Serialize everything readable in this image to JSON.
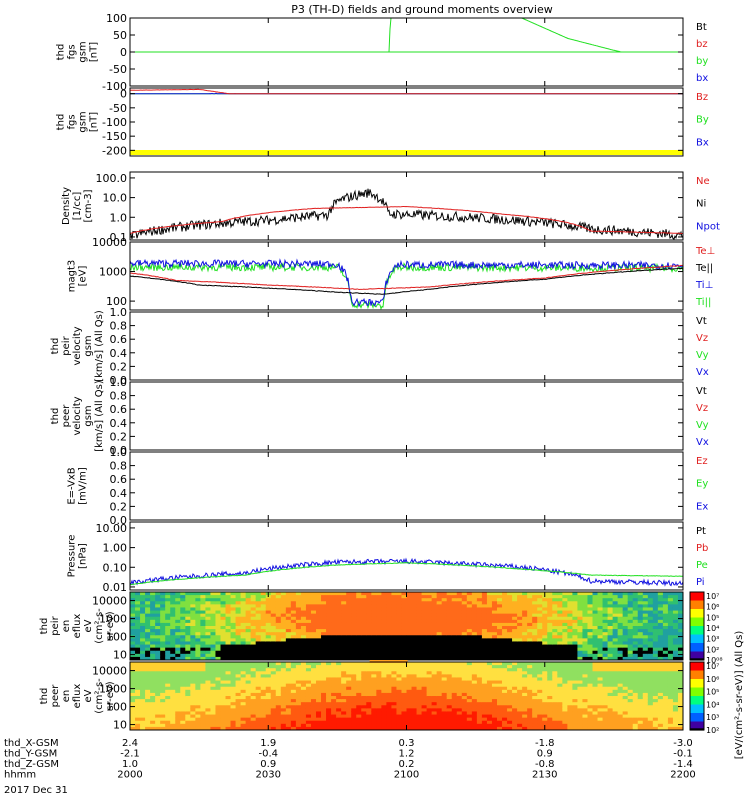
{
  "title": "P3 (TH-D) fields and ground moments overview",
  "date_label": "2017 Dec 31",
  "colors": {
    "black": "#000000",
    "red": "#e02020",
    "green": "#20e020",
    "blue": "#1010e0",
    "yellow": "#ffff00"
  },
  "panels": [
    {
      "id": "fgs",
      "ylabel": [
        "thd",
        "fgs",
        "gsm",
        "[nT]"
      ],
      "ylim": [
        -100,
        100
      ],
      "log": false,
      "ticks": [
        "100",
        "50",
        "0",
        "-50",
        "-100"
      ],
      "tickvals": [
        100,
        50,
        0,
        -50,
        -100
      ],
      "legend": [
        {
          "text": "Bt",
          "color": "black"
        },
        {
          "text": "bz",
          "color": "red"
        },
        {
          "text": "by",
          "color": "green"
        },
        {
          "text": "bx",
          "color": "blue"
        }
      ]
    },
    {
      "id": "fgl",
      "ylabel": [
        "thd",
        "fgs",
        "gsm",
        "[nT]"
      ],
      "ylim": [
        -220,
        20
      ],
      "log": false,
      "ticks": [
        "0",
        "-50",
        "-100",
        "-150",
        "-200"
      ],
      "tickvals": [
        0,
        -50,
        -100,
        -150,
        -200
      ],
      "legend": [
        {
          "text": "Bz",
          "color": "red"
        },
        {
          "text": "By",
          "color": "green"
        },
        {
          "text": "Bx",
          "color": "blue"
        }
      ]
    },
    {
      "id": "density",
      "ylabel": [
        "Density",
        "[1/cc]",
        "[cm-3]"
      ],
      "ylim": [
        0.07,
        200
      ],
      "log": true,
      "ticks": [
        "100.0",
        "10.0",
        "1.0",
        "0.1"
      ],
      "tickvals": [
        100,
        10,
        1,
        0.1
      ],
      "legend": [
        {
          "text": "Ne",
          "color": "red"
        },
        {
          "text": "Ni",
          "color": "black"
        },
        {
          "text": "Npot",
          "color": "blue"
        }
      ]
    },
    {
      "id": "temp",
      "ylabel": [
        "magt3",
        "[eV]"
      ],
      "ylim": [
        50,
        10000
      ],
      "log": true,
      "ticks": [
        "10000",
        "1000",
        "100"
      ],
      "tickvals": [
        10000,
        1000,
        100
      ],
      "legend": [
        {
          "text": "Te⊥",
          "color": "red"
        },
        {
          "text": "Te||",
          "color": "black"
        },
        {
          "text": "Ti⊥",
          "color": "blue"
        },
        {
          "text": "Ti||",
          "color": "green"
        }
      ]
    },
    {
      "id": "peirv",
      "ylabel": [
        "thd",
        "peir",
        "velocity",
        "gsm",
        "[km/s] (All Qs)"
      ],
      "ylim": [
        0,
        1
      ],
      "log": false,
      "ticks": [
        "1.0",
        "0.8",
        "0.6",
        "0.4",
        "0.2",
        "0.0"
      ],
      "tickvals": [
        1,
        0.8,
        0.6,
        0.4,
        0.2,
        0
      ],
      "legend": [
        {
          "text": "Vt",
          "color": "black"
        },
        {
          "text": "Vz",
          "color": "red"
        },
        {
          "text": "Vy",
          "color": "green"
        },
        {
          "text": "Vx",
          "color": "blue"
        }
      ]
    },
    {
      "id": "peerv",
      "ylabel": [
        "thd",
        "peer",
        "velocity",
        "gsm",
        "[km/s] (All Qs)"
      ],
      "ylim": [
        0,
        1
      ],
      "log": false,
      "ticks": [
        "1.0",
        "0.8",
        "0.6",
        "0.4",
        "0.2",
        "0.0"
      ],
      "tickvals": [
        1,
        0.8,
        0.6,
        0.4,
        0.2,
        0
      ],
      "legend": [
        {
          "text": "Vt",
          "color": "black"
        },
        {
          "text": "Vz",
          "color": "red"
        },
        {
          "text": "Vy",
          "color": "green"
        },
        {
          "text": "Vx",
          "color": "blue"
        }
      ]
    },
    {
      "id": "efield",
      "ylabel": [
        "E=-VxB",
        "[mV/m]"
      ],
      "ylim": [
        0,
        1
      ],
      "log": false,
      "ticks": [
        "1.0",
        "0.8",
        "0.6",
        "0.4",
        "0.2",
        "0.0"
      ],
      "tickvals": [
        1,
        0.8,
        0.6,
        0.4,
        0.2,
        0
      ],
      "legend": [
        {
          "text": "Ez",
          "color": "red"
        },
        {
          "text": "Ey",
          "color": "green"
        },
        {
          "text": "Ex",
          "color": "blue"
        }
      ]
    },
    {
      "id": "pressure",
      "ylabel": [
        "Pressure",
        "[nPa]"
      ],
      "ylim": [
        0.007,
        20
      ],
      "log": true,
      "ticks": [
        "10.00",
        "1.00",
        "0.10",
        "0.01"
      ],
      "tickvals": [
        10,
        1,
        0.1,
        0.01
      ],
      "legend": [
        {
          "text": "Pt",
          "color": "black"
        },
        {
          "text": "Pb",
          "color": "red"
        },
        {
          "text": "Pe",
          "color": "green"
        },
        {
          "text": "Pi",
          "color": "blue"
        }
      ]
    },
    {
      "id": "peirspec",
      "ylabel": [
        "thd",
        "peir",
        "en",
        "eflux",
        "eV",
        "(cm²-s-",
        "sr-eV)"
      ],
      "ylim": [
        5,
        30000
      ],
      "log": true,
      "ticks": [
        "10000",
        "1000",
        "100",
        "10"
      ],
      "tickvals": [
        10000,
        1000,
        100,
        10
      ],
      "legend": []
    },
    {
      "id": "peerspec",
      "ylabel": [
        "thd",
        "peer",
        "en",
        "eflux",
        "eV",
        "(cm²-s-",
        "sr-eV)"
      ],
      "ylim": [
        5,
        30000
      ],
      "log": true,
      "ticks": [
        "10000",
        "1000",
        "100",
        "10"
      ],
      "tickvals": [
        10000,
        1000,
        100,
        10
      ],
      "legend": []
    }
  ],
  "colorbar": {
    "ticks": [
      "10⁷",
      "10⁶",
      "10⁵",
      "10⁴",
      "10³",
      "10²",
      "10⁰⁸"
    ],
    "ticks2": [
      "10⁷",
      "10⁶",
      "10⁵",
      "10⁴",
      "10³",
      "10²"
    ],
    "label": "[eV/(cm²-s-sr-eV)] (All Qs)"
  },
  "xaxis": {
    "rows": [
      {
        "label": "thd_X-GSM",
        "values": [
          "2.4",
          "1.9",
          "0.3",
          "-1.8",
          "-3.0"
        ]
      },
      {
        "label": "thd_Y-GSM",
        "values": [
          "-2.1",
          "-0.4",
          "1.2",
          "0.9",
          "-0.1"
        ]
      },
      {
        "label": "thd_Z-GSM",
        "values": [
          "1.0",
          "0.9",
          "0.2",
          "-0.8",
          "-1.4"
        ]
      },
      {
        "label": "hhmm",
        "values": [
          "2000",
          "2030",
          "2100",
          "2130",
          "2200"
        ]
      }
    ],
    "tick_minutes": [
      0,
      30,
      60,
      90,
      120
    ],
    "range_minutes": [
      0,
      120
    ]
  },
  "chart_data": {
    "type": "line",
    "title": "P3 (TH-D) fields and ground moments overview",
    "x_unit": "minutes after 2000 UT",
    "fgs_bz": [
      [
        0,
        -300
      ],
      [
        37,
        -300
      ],
      [
        38,
        -100
      ]
    ],
    "fgs_bx": [
      [
        56,
        -100
      ],
      [
        56.5,
        100
      ]
    ],
    "fgs_by": [
      [
        85,
        100
      ],
      [
        95,
        40
      ],
      [
        105,
        5
      ],
      [
        115,
        -25
      ],
      [
        120,
        -35
      ]
    ],
    "fgl_Bz": [
      [
        0,
        12
      ],
      [
        15,
        15
      ],
      [
        30,
        -20
      ],
      [
        40,
        -50
      ],
      [
        45,
        -40
      ],
      [
        60,
        -15
      ],
      [
        90,
        -5
      ],
      [
        120,
        0
      ]
    ],
    "fgl_By": [
      [
        0,
        -15
      ],
      [
        15,
        -30
      ],
      [
        30,
        -90
      ],
      [
        42,
        -150
      ],
      [
        50,
        -110
      ],
      [
        60,
        -115
      ],
      [
        75,
        -95
      ],
      [
        90,
        -50
      ],
      [
        120,
        -10
      ]
    ],
    "fgl_Bx": [
      [
        0,
        -10
      ],
      [
        20,
        -5
      ],
      [
        37,
        -15
      ],
      [
        47,
        -120
      ],
      [
        55,
        -165
      ],
      [
        65,
        -110
      ],
      [
        90,
        -45
      ],
      [
        120,
        -10
      ]
    ],
    "density_Ne": [
      [
        0,
        0.15
      ],
      [
        20,
        0.6
      ],
      [
        40,
        2.8
      ],
      [
        60,
        3.5
      ],
      [
        80,
        1.5
      ],
      [
        100,
        0.2
      ],
      [
        120,
        0.15
      ]
    ],
    "density_Ni": [
      [
        0,
        0.1
      ],
      [
        30,
        0.7
      ],
      [
        43,
        1.3
      ],
      [
        46,
        8
      ],
      [
        52,
        18
      ],
      [
        56,
        1.5
      ],
      [
        80,
        0.8
      ],
      [
        100,
        0.25
      ],
      [
        120,
        0.12
      ]
    ],
    "temp_Te_perp": [
      [
        0,
        900
      ],
      [
        10,
        500
      ],
      [
        30,
        350
      ],
      [
        50,
        250
      ],
      [
        65,
        300
      ],
      [
        90,
        600
      ],
      [
        120,
        1600
      ]
    ],
    "temp_Te_par": [
      [
        0,
        700
      ],
      [
        15,
        350
      ],
      [
        45,
        200
      ],
      [
        55,
        170
      ],
      [
        65,
        250
      ],
      [
        90,
        550
      ],
      [
        120,
        1300
      ]
    ],
    "temp_Ti_perp": [
      [
        0,
        1900
      ],
      [
        45,
        1800
      ],
      [
        48,
        90
      ],
      [
        55,
        90
      ],
      [
        58,
        1700
      ],
      [
        120,
        1600
      ]
    ],
    "temp_Ti_par": [
      [
        0,
        1400
      ],
      [
        45,
        1400
      ],
      [
        48,
        80
      ],
      [
        55,
        70
      ],
      [
        58,
        1400
      ],
      [
        120,
        1300
      ]
    ],
    "pressure_Pi": [
      [
        0,
        0.016
      ],
      [
        25,
        0.05
      ],
      [
        45,
        0.18
      ],
      [
        60,
        0.2
      ],
      [
        85,
        0.1
      ],
      [
        100,
        0.02
      ],
      [
        120,
        0.015
      ]
    ],
    "pressure_Pe": [
      [
        0,
        0.013
      ],
      [
        25,
        0.04
      ],
      [
        45,
        0.13
      ],
      [
        60,
        0.17
      ],
      [
        85,
        0.08
      ],
      [
        100,
        0.04
      ],
      [
        120,
        0.035
      ]
    ]
  }
}
